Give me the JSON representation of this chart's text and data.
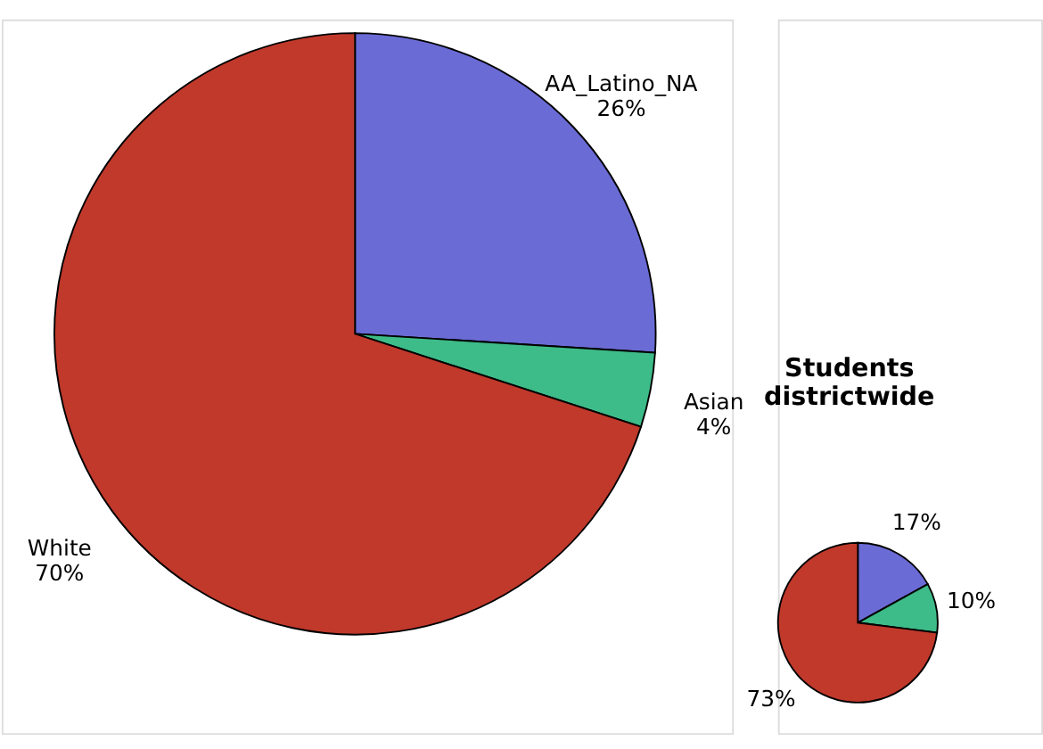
{
  "chart_data": [
    {
      "type": "pie",
      "categories": [
        "AA_Latino_NA",
        "Asian",
        "White"
      ],
      "values": [
        26,
        4,
        70
      ],
      "colors": [
        "#6b6bd6",
        "#3dbb88",
        "#c0392b"
      ],
      "value_labels": [
        "26%",
        "4%",
        "70%"
      ],
      "legend": false
    },
    {
      "type": "pie",
      "title": "Students districtwide",
      "categories": [
        null,
        null,
        null
      ],
      "values": [
        17,
        10,
        73
      ],
      "colors": [
        "#6b6bd6",
        "#3dbb88",
        "#c0392b"
      ],
      "value_labels": [
        "17%",
        "10%",
        "73%"
      ],
      "legend": false
    }
  ]
}
